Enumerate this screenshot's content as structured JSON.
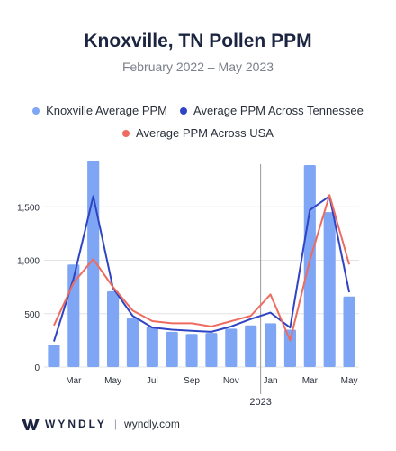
{
  "title": "Knoxville, TN Pollen PPM",
  "subtitle": "February 2022 – May 2023",
  "legend": {
    "knoxville": "Knoxville Average PPM",
    "tennessee": "Average PPM Across Tennessee",
    "usa": "Average PPM Across USA"
  },
  "colors": {
    "bar": "#7ea6f4",
    "tennessee": "#2f44c4",
    "usa": "#ee6b60",
    "grid": "#e3e3e3",
    "divider": "#9a9a9a"
  },
  "footer": {
    "brand": "WYNDLY",
    "separator": "|",
    "url": "wyndly.com",
    "logo_icon": "wyndly-logo-icon"
  },
  "chart_data": {
    "type": "bar",
    "title": "Knoxville, TN Pollen PPM",
    "subtitle": "February 2022 – May 2023",
    "categories": [
      "Feb 2022",
      "Mar 2022",
      "Apr 2022",
      "May 2022",
      "Jun 2022",
      "Jul 2022",
      "Aug 2022",
      "Sep 2022",
      "Oct 2022",
      "Nov 2022",
      "Dec 2022",
      "Jan 2023",
      "Feb 2023",
      "Mar 2023",
      "Apr 2023",
      "May 2023"
    ],
    "x_tick_labels": [
      "",
      "Mar",
      "",
      "May",
      "",
      "Jul",
      "",
      "Sep",
      "",
      "Nov",
      "",
      "Jan",
      "",
      "Mar",
      "",
      "May"
    ],
    "year_label": "2023",
    "year_divider_before": "Jan 2023",
    "ylim": [
      0,
      2000
    ],
    "yticks": [
      0,
      500,
      1000,
      1500
    ],
    "ytick_labels": [
      "0",
      "500",
      "1,000",
      "1,500"
    ],
    "grid": true,
    "legend_position": "top",
    "series": [
      {
        "name": "Knoxville Average PPM",
        "kind": "bar",
        "values": [
          210,
          960,
          1930,
          710,
          460,
          380,
          330,
          310,
          320,
          360,
          390,
          410,
          350,
          1890,
          1450,
          660
        ]
      },
      {
        "name": "Average PPM Across Tennessee",
        "kind": "line",
        "values": [
          240,
          830,
          1600,
          740,
          480,
          370,
          350,
          340,
          330,
          380,
          450,
          510,
          370,
          1470,
          1600,
          700
        ]
      },
      {
        "name": "Average PPM Across USA",
        "kind": "line",
        "values": [
          390,
          790,
          1010,
          750,
          530,
          430,
          410,
          410,
          380,
          430,
          480,
          680,
          250,
          1000,
          1610,
          960
        ]
      }
    ]
  }
}
